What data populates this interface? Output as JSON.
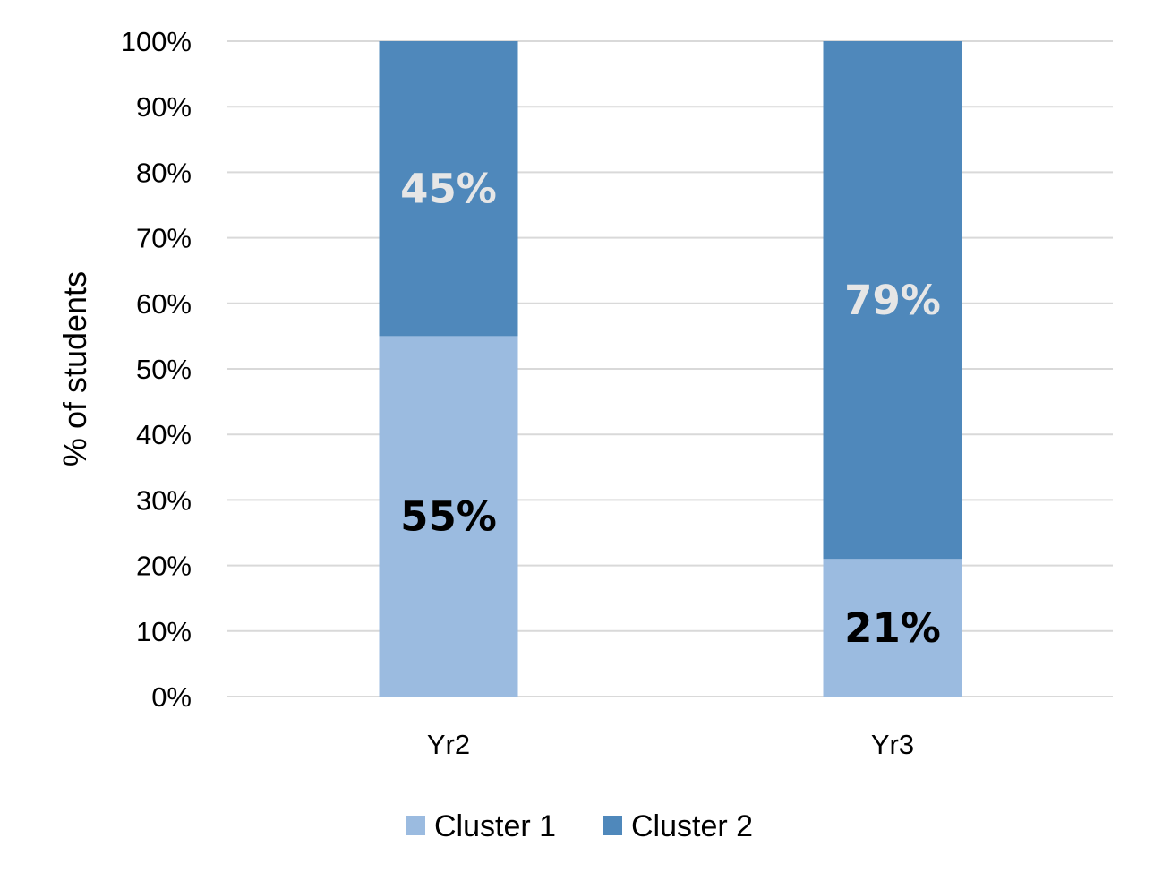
{
  "chart_data": {
    "type": "bar",
    "stacked": true,
    "title": "",
    "xlabel": "",
    "ylabel": "% of students",
    "categories": [
      "Yr2",
      "Yr3"
    ],
    "series": [
      {
        "name": "Cluster 1",
        "values": [
          55,
          21
        ],
        "color": "#9BBBE0",
        "label_color": "#000000",
        "labels": [
          "55%",
          "21%"
        ]
      },
      {
        "name": "Cluster 2",
        "values": [
          45,
          79
        ],
        "color": "#4F88BB",
        "label_color": "#E6E6E6",
        "labels": [
          "45%",
          "79%"
        ]
      }
    ],
    "ylim": [
      0,
      100
    ],
    "y_ticks": [
      0,
      10,
      20,
      30,
      40,
      50,
      60,
      70,
      80,
      90,
      100
    ],
    "y_tick_labels": [
      "0%",
      "10%",
      "20%",
      "30%",
      "40%",
      "50%",
      "60%",
      "70%",
      "80%",
      "90%",
      "100%"
    ],
    "grid": true,
    "gridline_color": "#D9D9D9",
    "legend": "bottom"
  }
}
